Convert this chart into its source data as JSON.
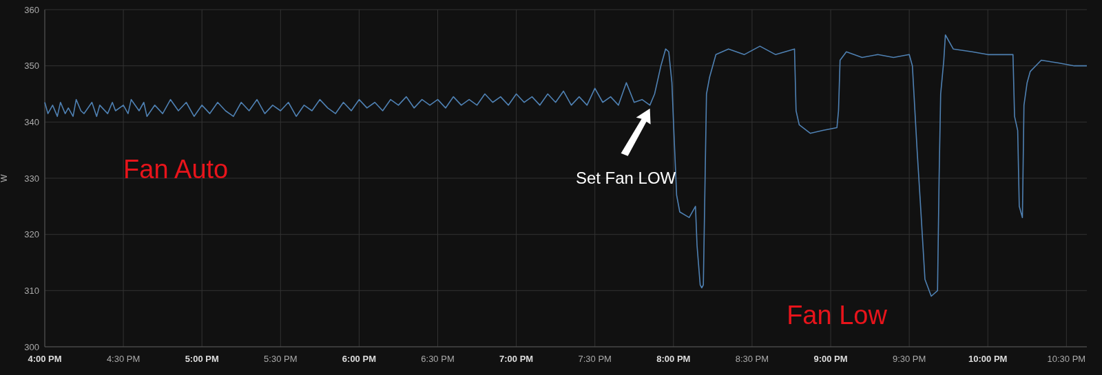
{
  "chart_data": {
    "type": "line",
    "ylabel": "W",
    "xlim": [
      16,
      22.63
    ],
    "ylim": [
      300,
      360
    ],
    "xticks": [
      {
        "value": 16,
        "label": "4:00 PM"
      },
      {
        "value": 16.5,
        "label": "4:30 PM"
      },
      {
        "value": 17,
        "label": "5:00 PM"
      },
      {
        "value": 17.5,
        "label": "5:30 PM"
      },
      {
        "value": 18,
        "label": "6:00 PM"
      },
      {
        "value": 18.5,
        "label": "6:30 PM"
      },
      {
        "value": 19,
        "label": "7:00 PM"
      },
      {
        "value": 19.5,
        "label": "7:30 PM"
      },
      {
        "value": 20,
        "label": "8:00 PM"
      },
      {
        "value": 20.5,
        "label": "8:30 PM"
      },
      {
        "value": 21,
        "label": "9:00 PM"
      },
      {
        "value": 21.5,
        "label": "9:30 PM"
      },
      {
        "value": 22,
        "label": "10:00 PM"
      },
      {
        "value": 22.5,
        "label": "10:30 PM"
      }
    ],
    "yticks": [
      300,
      310,
      320,
      330,
      340,
      350,
      360
    ],
    "grid": true,
    "marker": "none",
    "line_style": "solid",
    "annotations": [
      "Fan Auto",
      "Fan Low",
      "Set Fan LOW"
    ],
    "series": [
      {
        "color": "#4f81b3",
        "x": [
          16,
          16.02,
          16.05,
          16.08,
          16.1,
          16.13,
          16.15,
          16.18,
          16.2,
          16.23,
          16.25,
          16.3,
          16.33,
          16.35,
          16.4,
          16.43,
          16.45,
          16.5,
          16.53,
          16.55,
          16.6,
          16.63,
          16.65,
          16.7,
          16.75,
          16.8,
          16.85,
          16.9,
          16.95,
          17,
          17.05,
          17.1,
          17.15,
          17.2,
          17.25,
          17.3,
          17.35,
          17.4,
          17.45,
          17.5,
          17.55,
          17.6,
          17.65,
          17.7,
          17.75,
          17.8,
          17.85,
          17.9,
          17.95,
          18,
          18.05,
          18.1,
          18.15,
          18.2,
          18.25,
          18.3,
          18.35,
          18.4,
          18.45,
          18.5,
          18.55,
          18.6,
          18.65,
          18.7,
          18.75,
          18.8,
          18.85,
          18.9,
          18.95,
          19,
          19.05,
          19.1,
          19.15,
          19.2,
          19.25,
          19.3,
          19.35,
          19.4,
          19.45,
          19.5,
          19.55,
          19.6,
          19.65,
          19.7,
          19.75,
          19.8,
          19.85,
          19.88,
          19.92,
          19.95,
          19.97,
          19.99,
          20,
          20.02,
          20.04,
          20.1,
          20.14,
          20.15,
          20.17,
          20.18,
          20.19,
          20.21,
          20.23,
          20.27,
          20.35,
          20.45,
          20.55,
          20.65,
          20.77,
          20.78,
          20.8,
          20.87,
          20.95,
          21.04,
          21.05,
          21.06,
          21.1,
          21.2,
          21.3,
          21.4,
          21.5,
          21.52,
          21.55,
          21.57,
          21.6,
          21.64,
          21.68,
          21.69,
          21.7,
          21.72,
          21.73,
          21.78,
          21.9,
          22,
          22.1,
          22.16,
          22.17,
          22.19,
          22.2,
          22.22,
          22.23,
          22.25,
          22.27,
          22.34,
          22.45,
          22.55,
          22.63
        ],
        "values": [
          343.5,
          341.5,
          343,
          341,
          343.5,
          341.5,
          342.5,
          341,
          344,
          342,
          341.5,
          343.5,
          341,
          343,
          341.5,
          343.5,
          342,
          343,
          341.5,
          344,
          342,
          343.5,
          341,
          343,
          341.5,
          344,
          342,
          343.5,
          341,
          343,
          341.5,
          343.5,
          342,
          341,
          343.5,
          342,
          344,
          341.5,
          343,
          342,
          343.5,
          341,
          343,
          342,
          344,
          342.5,
          341.5,
          343.5,
          342,
          344,
          342.5,
          343.5,
          342,
          344,
          343,
          344.5,
          342.5,
          344,
          343,
          344,
          342.5,
          344.5,
          343,
          344,
          343,
          345,
          343.5,
          344.5,
          343,
          345,
          343.5,
          344.5,
          343,
          345,
          343.5,
          345.5,
          343,
          344.5,
          343,
          346,
          343.5,
          344.5,
          343,
          347,
          343.5,
          344,
          343,
          345,
          350,
          353,
          352.5,
          347,
          340,
          327,
          324,
          323,
          325,
          318,
          311,
          310.5,
          311,
          345,
          348,
          352,
          353,
          352,
          353.5,
          352,
          353,
          342,
          339.5,
          338,
          338.5,
          339,
          342,
          351,
          352.5,
          351.5,
          352,
          351.5,
          352,
          350,
          335,
          326,
          312,
          309,
          310,
          330,
          345,
          351,
          355.5,
          353,
          352.5,
          352,
          352,
          352,
          341,
          338.5,
          325,
          323,
          343,
          347,
          349,
          351,
          350.5,
          350,
          350
        ]
      }
    ]
  }
}
